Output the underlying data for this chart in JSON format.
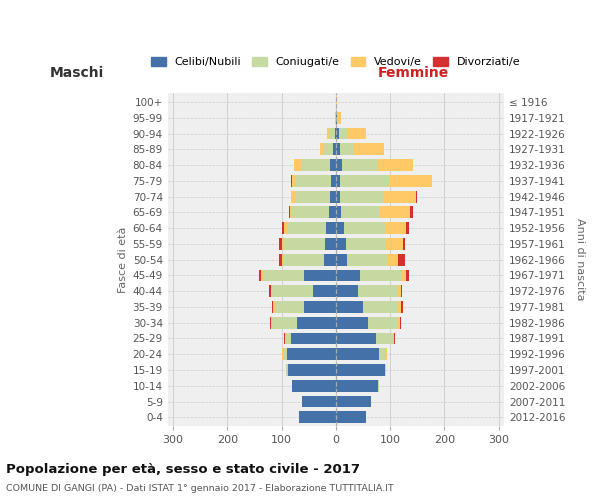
{
  "age_groups": [
    "0-4",
    "5-9",
    "10-14",
    "15-19",
    "20-24",
    "25-29",
    "30-34",
    "35-39",
    "40-44",
    "45-49",
    "50-54",
    "55-59",
    "60-64",
    "65-69",
    "70-74",
    "75-79",
    "80-84",
    "85-89",
    "90-94",
    "95-99",
    "100+"
  ],
  "birth_years": [
    "2012-2016",
    "2007-2011",
    "2002-2006",
    "1997-2001",
    "1992-1996",
    "1987-1991",
    "1982-1986",
    "1977-1981",
    "1972-1976",
    "1967-1971",
    "1962-1966",
    "1957-1961",
    "1952-1956",
    "1947-1951",
    "1942-1946",
    "1937-1941",
    "1932-1936",
    "1927-1931",
    "1922-1926",
    "1917-1921",
    "≤ 1916"
  ],
  "males": {
    "celibi": [
      68,
      62,
      80,
      88,
      90,
      82,
      72,
      58,
      42,
      58,
      22,
      20,
      18,
      12,
      10,
      8,
      10,
      5,
      2,
      0,
      0
    ],
    "coniugati": [
      0,
      0,
      0,
      3,
      8,
      10,
      45,
      55,
      75,
      75,
      75,
      75,
      72,
      68,
      65,
      65,
      55,
      18,
      10,
      2,
      0
    ],
    "vedovi": [
      0,
      0,
      0,
      0,
      2,
      2,
      2,
      2,
      3,
      5,
      3,
      4,
      5,
      5,
      8,
      8,
      12,
      6,
      5,
      0,
      0
    ],
    "divorziati": [
      0,
      0,
      0,
      0,
      0,
      2,
      2,
      3,
      3,
      3,
      5,
      5,
      5,
      2,
      0,
      2,
      0,
      0,
      0,
      0,
      0
    ]
  },
  "females": {
    "celibi": [
      55,
      65,
      78,
      90,
      80,
      75,
      60,
      50,
      40,
      45,
      20,
      18,
      15,
      10,
      8,
      8,
      12,
      8,
      5,
      2,
      1
    ],
    "coniugati": [
      0,
      0,
      2,
      3,
      12,
      30,
      55,
      65,
      75,
      75,
      75,
      75,
      75,
      72,
      80,
      90,
      65,
      25,
      15,
      2,
      0
    ],
    "vedovi": [
      0,
      0,
      0,
      0,
      2,
      2,
      3,
      5,
      5,
      10,
      20,
      30,
      40,
      55,
      60,
      80,
      65,
      55,
      35,
      5,
      2
    ],
    "divorziati": [
      0,
      0,
      0,
      0,
      0,
      2,
      2,
      3,
      2,
      5,
      12,
      5,
      5,
      5,
      2,
      0,
      0,
      0,
      0,
      0,
      0
    ]
  },
  "colors": {
    "celibi": "#4472a8",
    "coniugati": "#c5d9a0",
    "vedovi": "#ffc966",
    "divorziati": "#d43030"
  },
  "legend_labels": [
    "Celibi/Nubili",
    "Coniugati/e",
    "Vedovi/e",
    "Divorziati/e"
  ],
  "title": "Popolazione per età, sesso e stato civile - 2017",
  "subtitle": "COMUNE DI GANGI (PA) - Dati ISTAT 1° gennaio 2017 - Elaborazione TUTTITALIA.IT",
  "maschi_label": "Maschi",
  "femmine_label": "Femmine",
  "ylabel_left": "Fasce di età",
  "ylabel_right": "Anni di nascita",
  "xlim": 310,
  "bg_color": "#ffffff",
  "plot_bg": "#efefef",
  "grid_color": "#cccccc"
}
